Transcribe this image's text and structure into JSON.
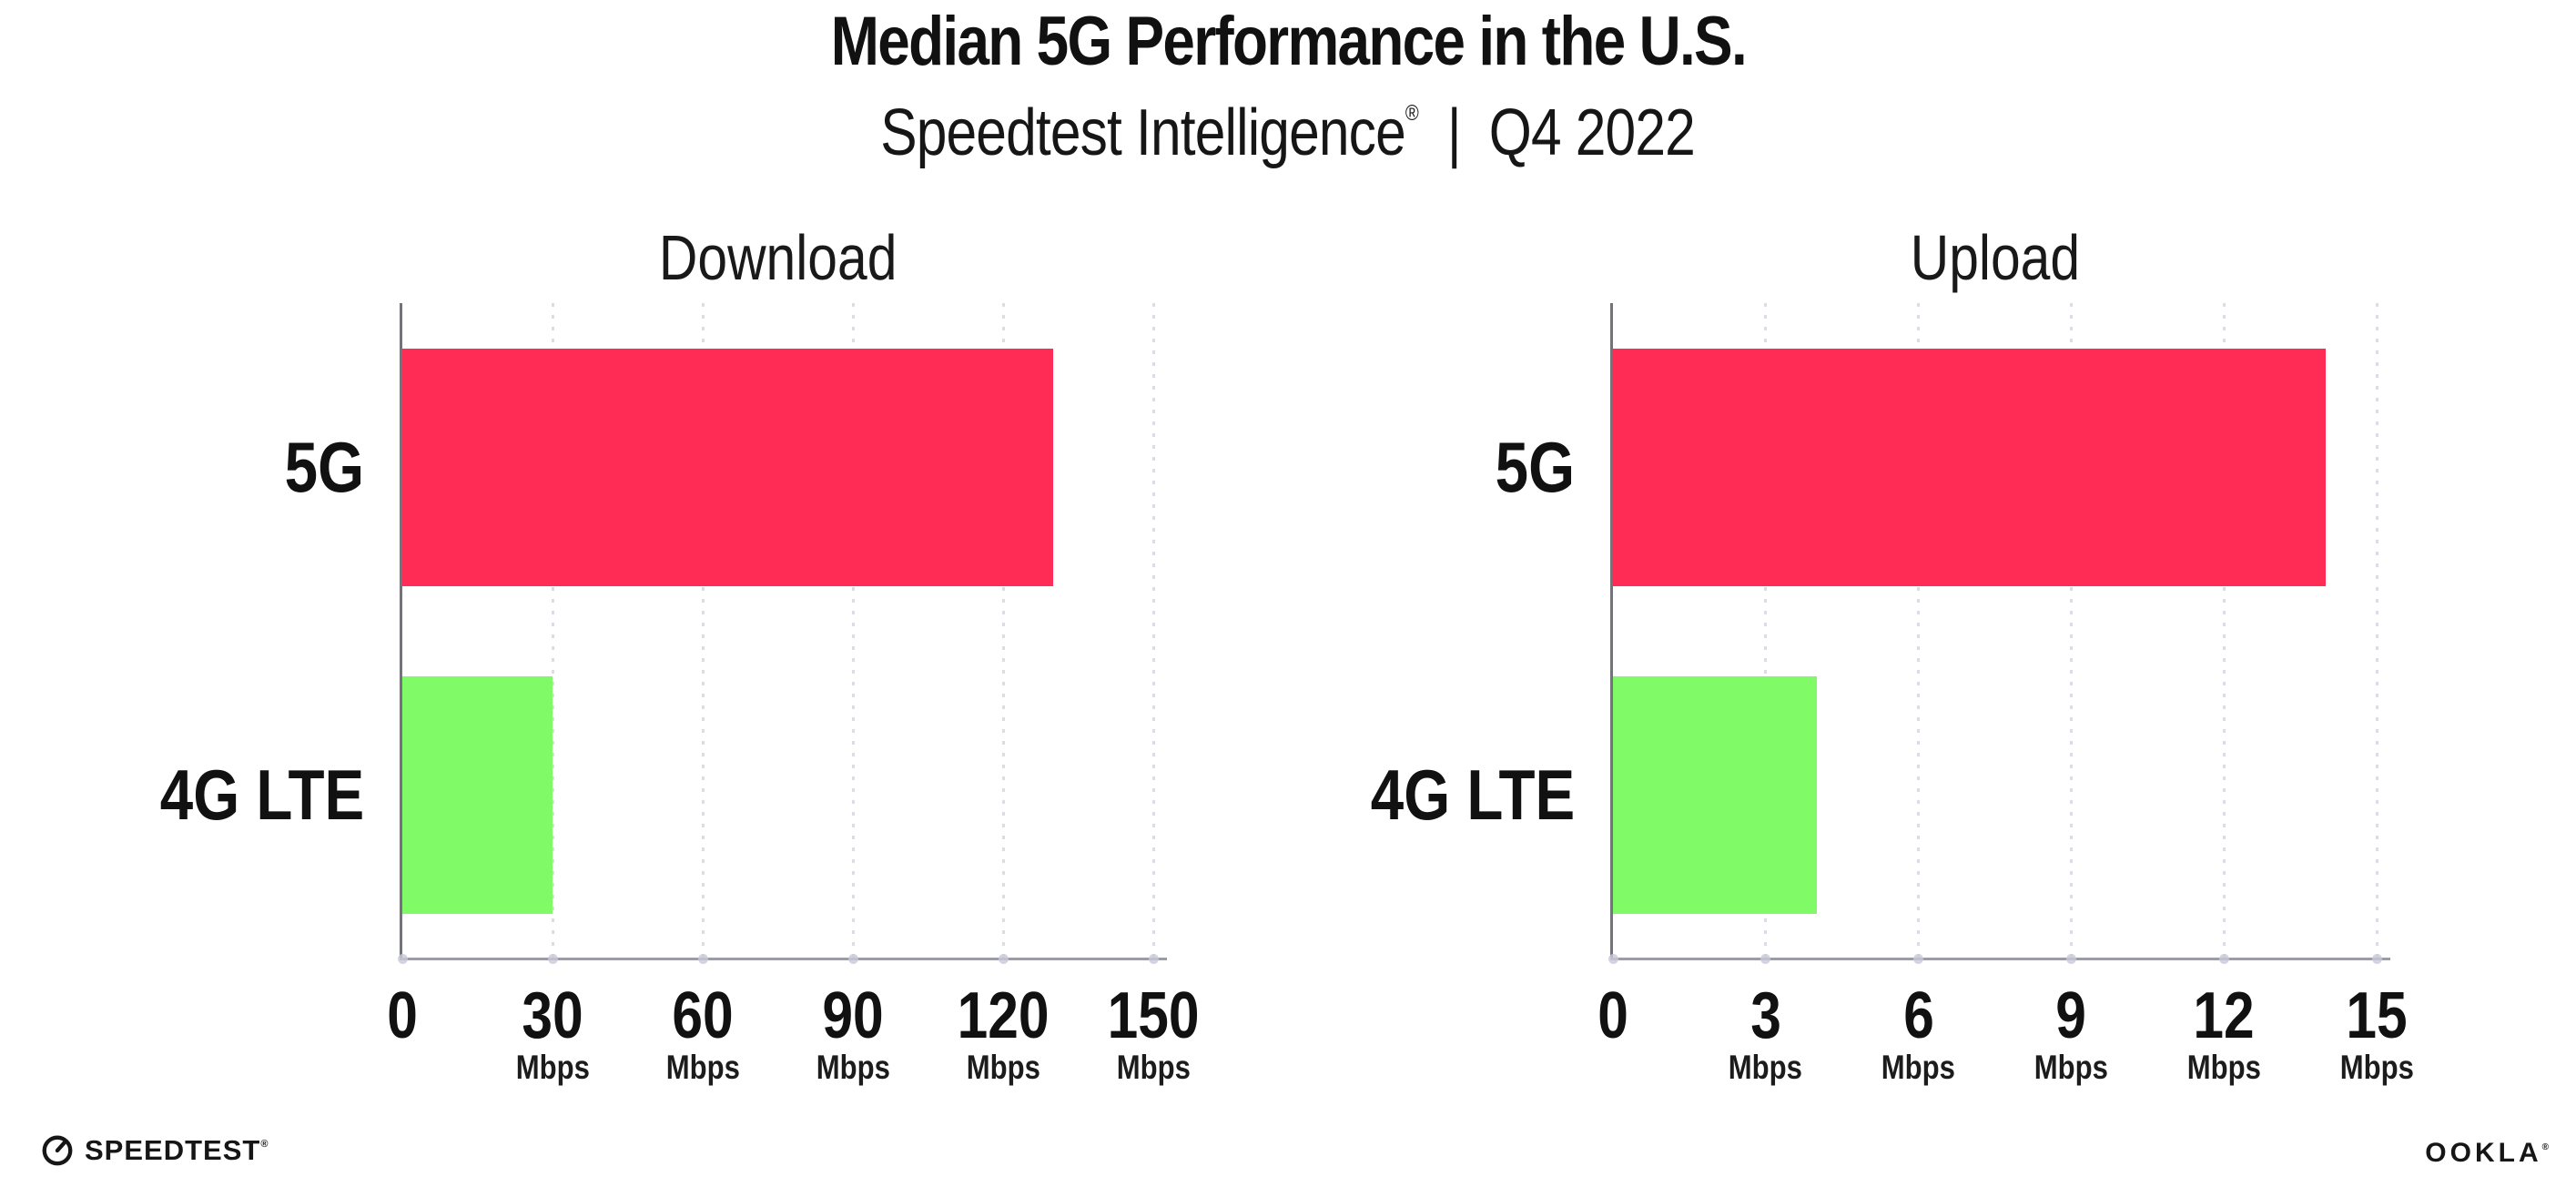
{
  "header": {
    "title": "Median 5G Performance in the U.S.",
    "subtitle": {
      "brand": "Speedtest Intelligence",
      "registered": "®",
      "separator": "|",
      "period": "Q4 2022"
    }
  },
  "colors": {
    "bar_5g": "#FF2D55",
    "bar_4g_lte": "#80FA66",
    "axis": "#9c9ca4",
    "spine": "#73737d",
    "grid_dot": "#dcdce6",
    "text": "#111111"
  },
  "chart_data": [
    {
      "type": "bar",
      "orientation": "horizontal",
      "title": "Download",
      "unit": "Mbps",
      "categories": [
        "5G",
        "4G LTE"
      ],
      "values": [
        130,
        30
      ],
      "xlim": [
        0,
        150
      ],
      "xticks": [
        0,
        30,
        60,
        90,
        120,
        150
      ],
      "bar_colors": [
        "#FF2D55",
        "#80FA66"
      ],
      "grid": "vertical-dotted",
      "legend": "none"
    },
    {
      "type": "bar",
      "orientation": "horizontal",
      "title": "Upload",
      "unit": "Mbps",
      "categories": [
        "5G",
        "4G LTE"
      ],
      "values": [
        14,
        4
      ],
      "xlim": [
        0,
        15
      ],
      "xticks": [
        0,
        3,
        6,
        9,
        12,
        15
      ],
      "bar_colors": [
        "#FF2D55",
        "#80FA66"
      ],
      "grid": "vertical-dotted",
      "legend": "none"
    }
  ],
  "footer": {
    "speedtest_label": "SPEEDTEST",
    "speedtest_registered": "®",
    "ookla_label": "OOKLA",
    "ookla_registered": "®"
  }
}
